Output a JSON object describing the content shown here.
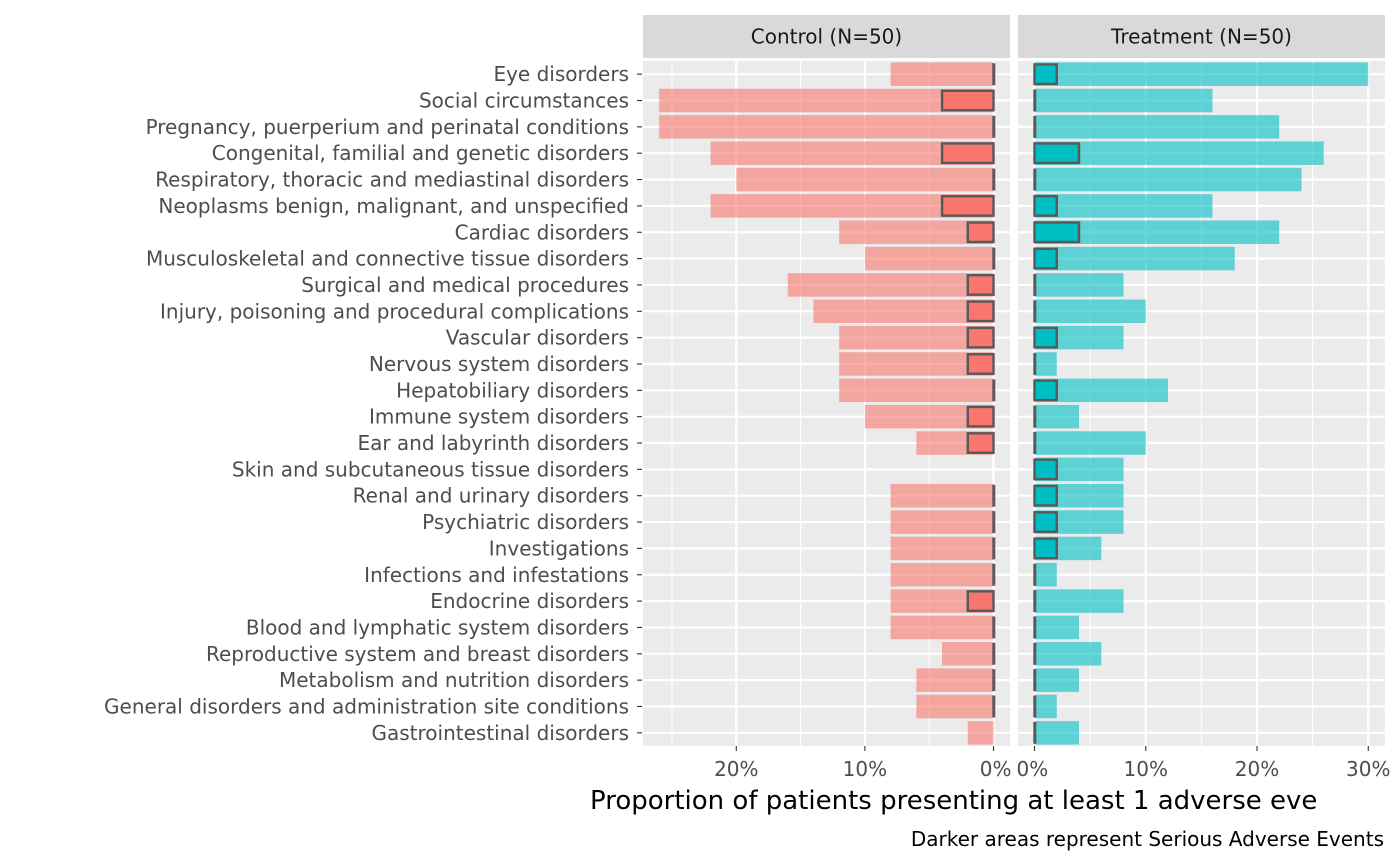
{
  "chart_data": {
    "type": "bar",
    "orientation": "horizontal",
    "x_label": "Proportion of patients presenting at least 1 adverse eve",
    "caption": "Darker areas represent Serious Adverse Events",
    "panels": [
      {
        "title": "Control (N=50)",
        "direction": "left",
        "color": "#F8766D",
        "xlim": [
          0,
          0.27
        ],
        "ticks": [
          0,
          0.1,
          0.2
        ],
        "tick_labels": [
          "0%",
          "10%",
          "20%"
        ]
      },
      {
        "title": "Treatment (N=50)",
        "direction": "right",
        "color": "#00BFC4",
        "xlim": [
          0,
          0.305
        ],
        "ticks": [
          0,
          0.1,
          0.2,
          0.3
        ],
        "tick_labels": [
          "0%",
          "10%",
          "20%",
          "30%"
        ]
      }
    ],
    "categories": [
      "Eye disorders",
      "Social circumstances",
      "Pregnancy, puerperium and perinatal conditions",
      "Congenital, familial and genetic disorders",
      "Respiratory, thoracic and mediastinal disorders",
      "Neoplasms benign, malignant, and unspecified",
      "Cardiac disorders",
      "Musculoskeletal and connective tissue disorders",
      "Surgical and medical procedures",
      "Injury, poisoning and procedural complications",
      "Vascular disorders",
      "Nervous system disorders",
      "Hepatobiliary disorders",
      "Immune system disorders",
      "Ear and labyrinth disorders",
      "Skin and subcutaneous tissue disorders",
      "Renal and urinary disorders",
      "Psychiatric disorders",
      "Investigations",
      "Infections and infestations",
      "Endocrine disorders",
      "Blood and lymphatic system disorders",
      "Reproductive system and breast disorders",
      "Metabolism and nutrition disorders",
      "General disorders and administration site conditions",
      "Gastrointestinal disorders"
    ],
    "series": [
      {
        "name": "Control (N=50)",
        "all": [
          0.08,
          0.26,
          0.26,
          0.22,
          0.2,
          0.22,
          0.12,
          0.1,
          0.16,
          0.14,
          0.12,
          0.12,
          0.12,
          0.1,
          0.06,
          0.0,
          0.08,
          0.08,
          0.08,
          0.08,
          0.08,
          0.08,
          0.04,
          0.06,
          0.06,
          0.02
        ],
        "serious": [
          0,
          0.04,
          0,
          0.04,
          0,
          0.04,
          0.02,
          0,
          0.02,
          0.02,
          0.02,
          0.02,
          0,
          0.02,
          0.02,
          null,
          0,
          0,
          0,
          0,
          0.02,
          0,
          0,
          0,
          0,
          null
        ]
      },
      {
        "name": "Treatment (N=50)",
        "all": [
          0.3,
          0.16,
          0.22,
          0.26,
          0.24,
          0.16,
          0.22,
          0.18,
          0.08,
          0.1,
          0.08,
          0.02,
          0.12,
          0.04,
          0.1,
          0.08,
          0.08,
          0.08,
          0.06,
          0.02,
          0.08,
          0.04,
          0.06,
          0.04,
          0.02,
          0.04
        ],
        "serious": [
          0.02,
          0,
          0,
          0.04,
          0,
          0.02,
          0.04,
          0.02,
          0,
          0,
          0.02,
          0,
          0.02,
          0,
          0,
          0.02,
          0.02,
          0.02,
          0.02,
          0,
          0,
          0,
          0,
          0,
          0,
          0
        ]
      }
    ],
    "grid": true
  }
}
